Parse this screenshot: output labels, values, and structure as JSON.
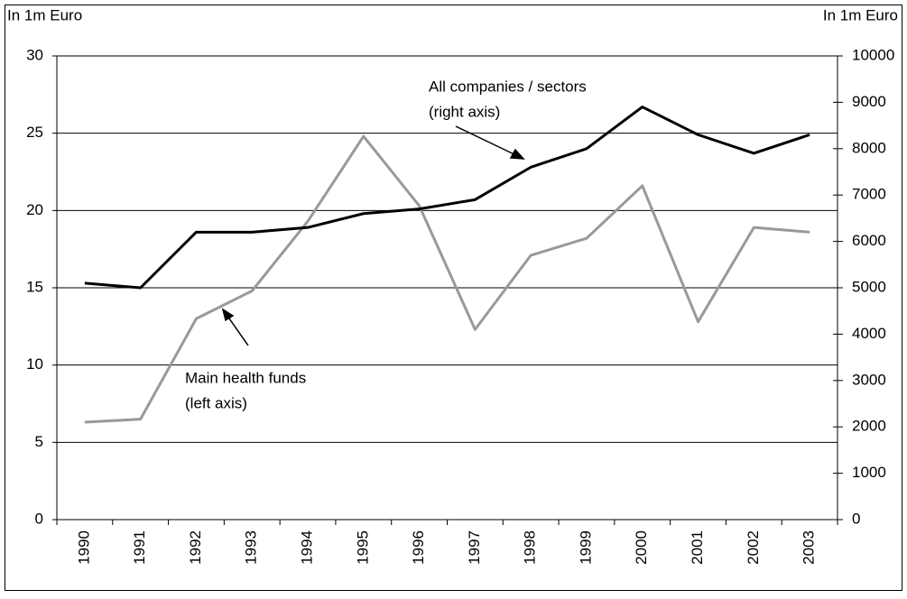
{
  "chart_data": {
    "type": "line",
    "y_label": "In 1m Euro",
    "y2_label": "In 1m Euro",
    "annotations": [
      "All companies /  sectors",
      "(right axis)",
      "Main health funds",
      "(left axis)"
    ],
    "categories": [
      "1990",
      "1991",
      "1992",
      "1993",
      "1994",
      "1995",
      "1996",
      "1997",
      "1998",
      "1999",
      "2000",
      "2001",
      "2002",
      "2003"
    ],
    "series": [
      {
        "color": "#999999",
        "axis": "y",
        "values": [
          6.3,
          6.5,
          13.0,
          14.8,
          19.3,
          24.8,
          20.3,
          12.3,
          17.1,
          18.2,
          21.6,
          12.8,
          18.9,
          18.6
        ]
      },
      {
        "color": "#000000",
        "axis": "y2",
        "values": [
          5100,
          5000,
          6200,
          6200,
          6300,
          6600,
          6700,
          6900,
          7600,
          8000,
          8900,
          8300,
          7900,
          8300
        ]
      }
    ],
    "ylim": [
      0,
      30
    ],
    "yticks": [
      0,
      5,
      10,
      15,
      20,
      25,
      30
    ],
    "y2lim": [
      0,
      10000
    ],
    "y2ticks": [
      0,
      1000,
      2000,
      3000,
      4000,
      5000,
      6000,
      7000,
      8000,
      9000,
      10000
    ],
    "grid": true
  }
}
